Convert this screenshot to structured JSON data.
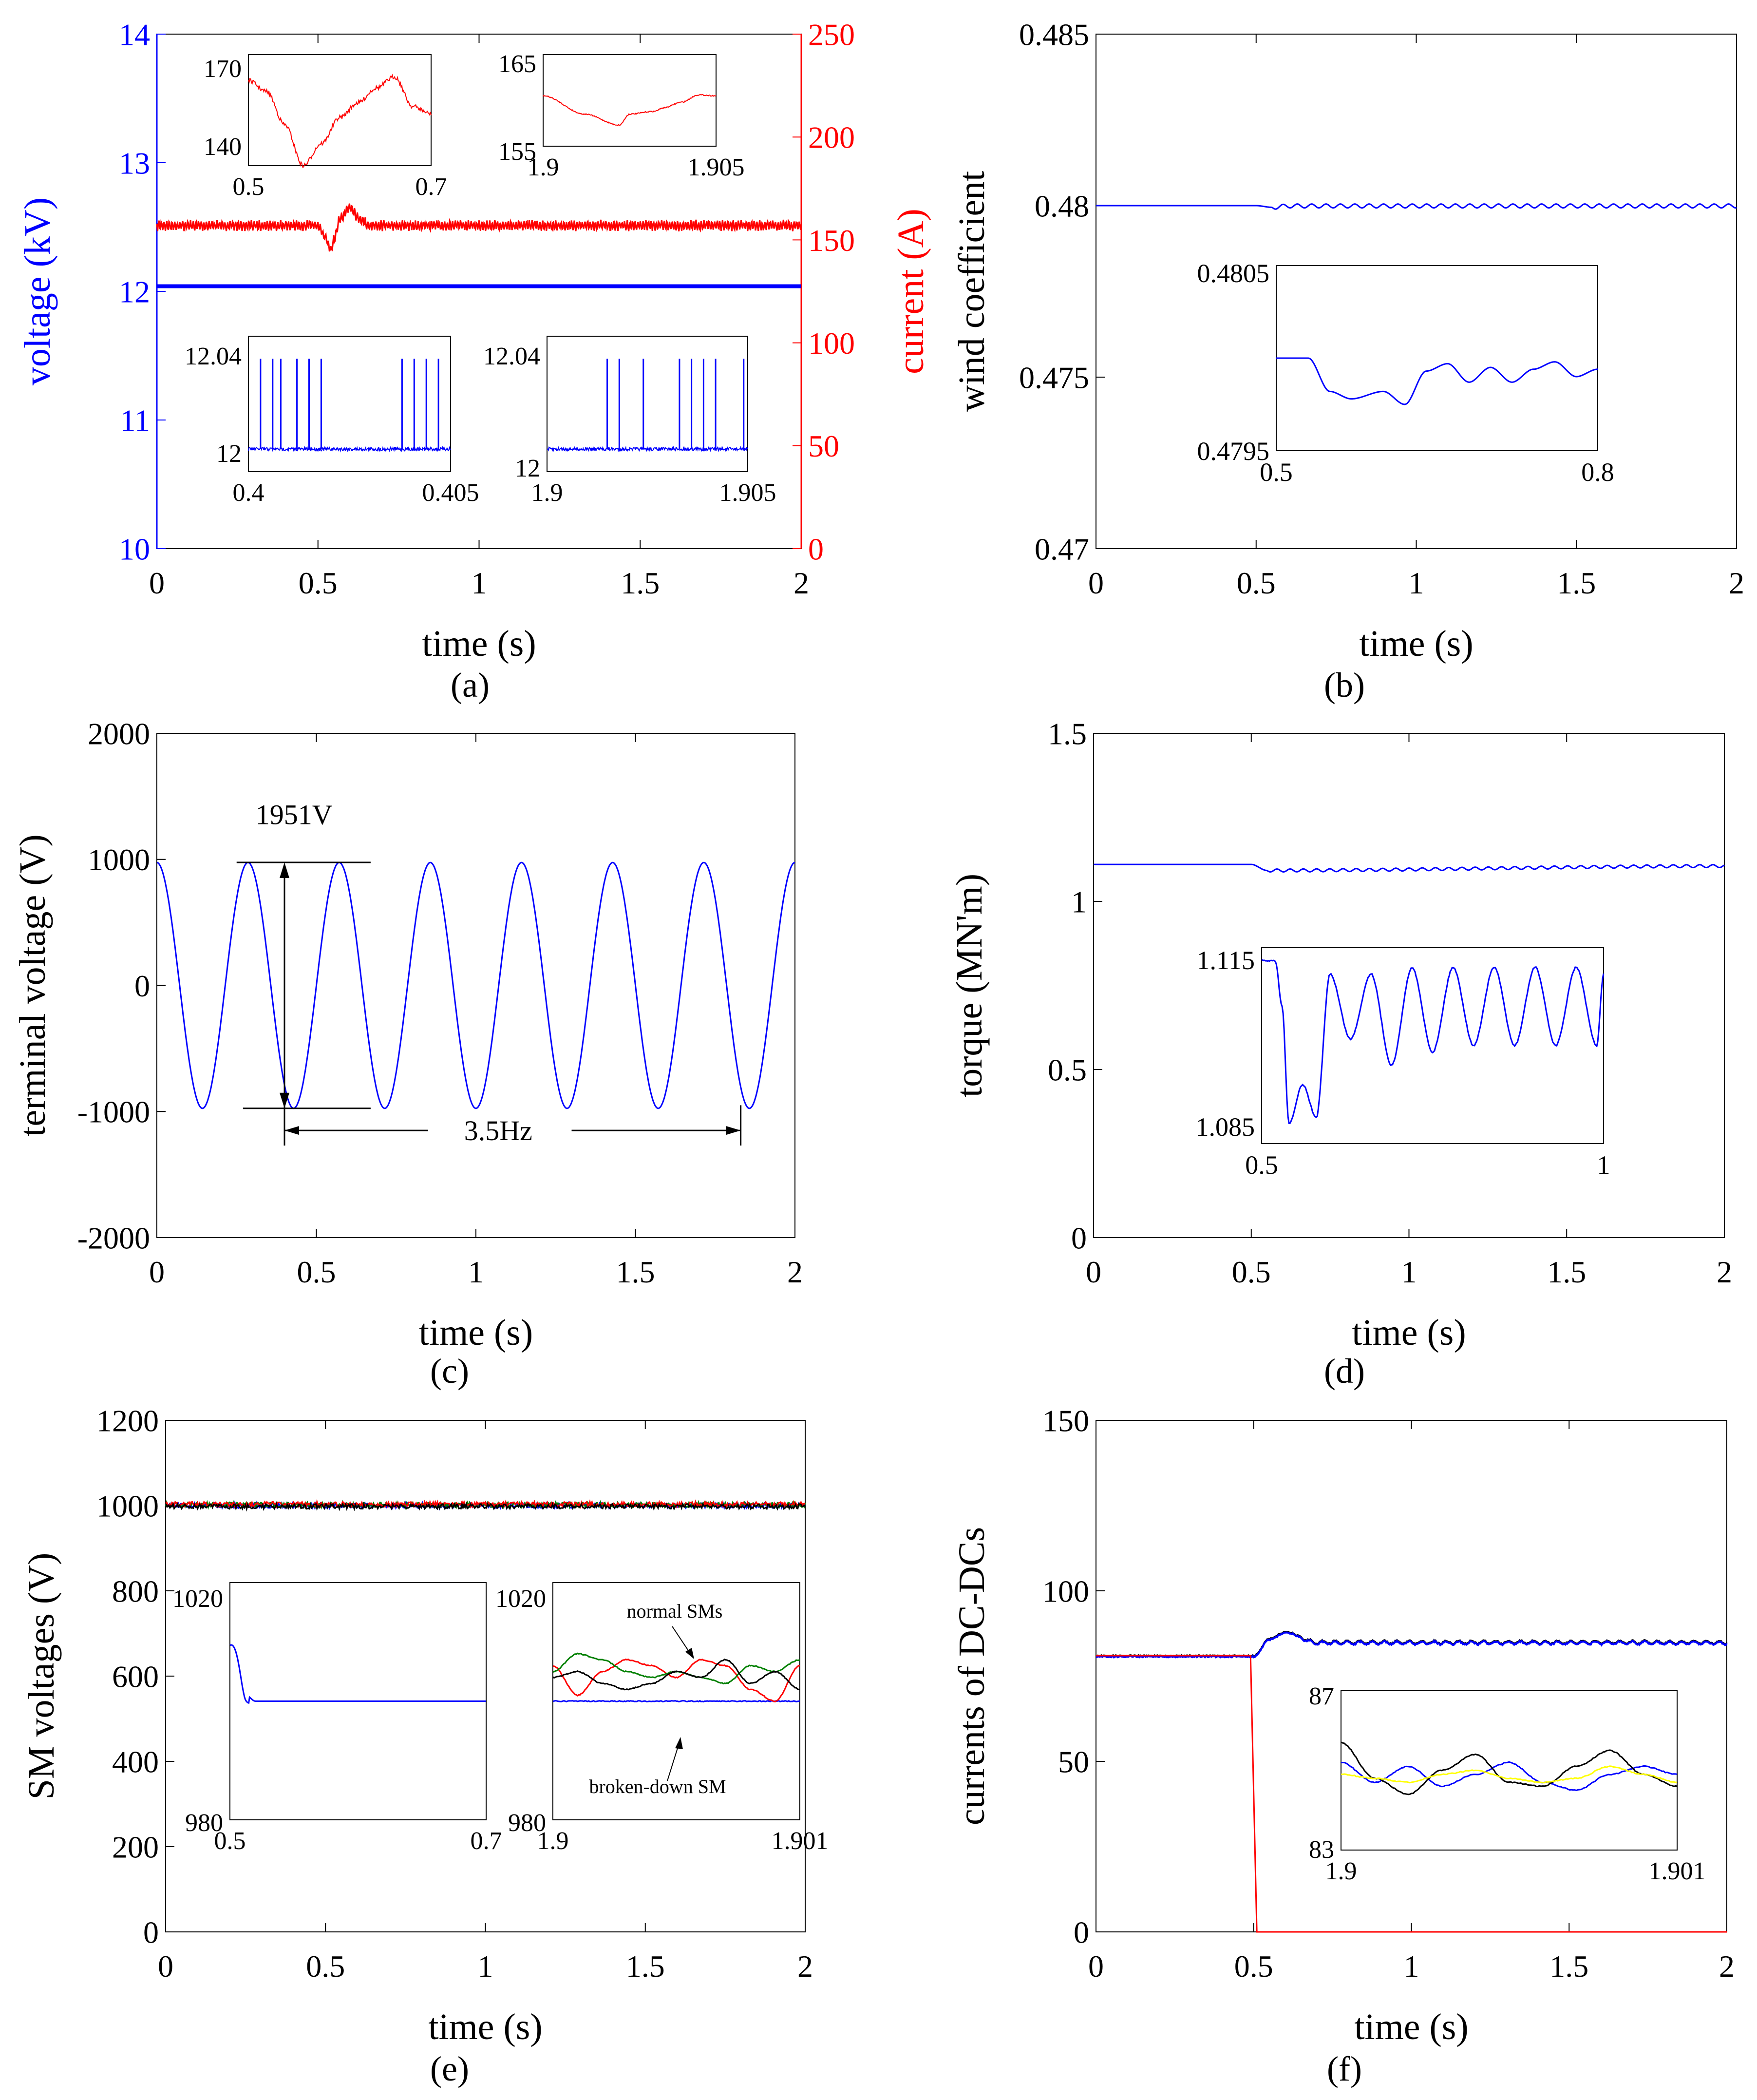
{
  "figure": {
    "panel_labels": [
      "(a)",
      "(b)",
      "(c)",
      "(d)",
      "(e)",
      "(f)"
    ]
  },
  "colors": {
    "blue": "#0000ff",
    "red": "#ff0000",
    "green": "#008000",
    "black": "#000000",
    "yellow": "#ffff00"
  },
  "chart_data": [
    {
      "id": "a",
      "type": "line",
      "label": "(a)",
      "xlabel": "time (s)",
      "ylabel": "voltage (kV)",
      "y2label": "current (A)",
      "xlim": [
        0,
        2
      ],
      "ylim": [
        10,
        14
      ],
      "y2lim": [
        0,
        250
      ],
      "xticks": [
        "0",
        "0.5",
        "1",
        "1.5",
        "2"
      ],
      "yticks": [
        "10",
        "11",
        "12",
        "13",
        "14"
      ],
      "y2ticks": [
        "0",
        "50",
        "100",
        "150",
        "200",
        "250"
      ],
      "series": [
        {
          "color": "#0000ff",
          "axis": "left",
          "x": [
            0,
            2
          ],
          "y": [
            12.04,
            12.04
          ]
        },
        {
          "color": "#ff0000",
          "axis": "right",
          "x": [
            0,
            0.5,
            0.52,
            0.54,
            0.55,
            0.57,
            0.6,
            0.63,
            0.66,
            0.7,
            2
          ],
          "y": [
            157,
            157,
            152,
            145,
            150,
            161,
            166,
            160,
            157,
            157,
            157
          ]
        }
      ],
      "insets": [
        {
          "xlim": [
            0.5,
            0.7
          ],
          "ylim": [
            140,
            170
          ],
          "xticks": [
            "0.5",
            "0.7"
          ],
          "yticks": [
            "140",
            "170"
          ],
          "series": [
            {
              "color": "#ff0000",
              "x": [
                0.5,
                0.52,
                0.54,
                0.56,
                0.58,
                0.6,
                0.62,
                0.64,
                0.66,
                0.68,
                0.7
              ],
              "y": [
                163,
                160,
                151,
                140,
                146,
                153,
                157,
                161,
                164,
                156,
                154
              ]
            }
          ]
        },
        {
          "xlim": [
            1.9,
            1.905
          ],
          "ylim": [
            155,
            165
          ],
          "xticks": [
            "1.9",
            "1.905"
          ],
          "yticks": [
            "155",
            "165"
          ],
          "series": [
            {
              "color": "#ff0000",
              "x": [
                1.9,
                1.9012,
                1.9022,
                1.9025,
                1.9032,
                1.9035,
                1.904,
                1.9045,
                1.905
              ],
              "y": [
                160.5,
                158.5,
                157.3,
                158.5,
                158.8,
                159.2,
                159.8,
                160.6,
                160.5
              ]
            }
          ]
        },
        {
          "xlim": [
            0.4,
            0.405
          ],
          "ylim": [
            11.99,
            12.05
          ],
          "xticks": [
            "0.4",
            "0.405"
          ],
          "yticks": [
            "12",
            "12.04"
          ],
          "series": [
            {
              "color": "#0000ff",
              "base": 12.0,
              "spikes": [
                0.4003,
                0.4006,
                0.4008,
                0.4012,
                0.4015,
                0.4018,
                0.4038,
                0.4041,
                0.4044,
                0.4047
              ],
              "spike_top": 12.04
            }
          ]
        },
        {
          "xlim": [
            1.9,
            1.905
          ],
          "ylim": [
            11.99,
            12.05
          ],
          "xticks": [
            "1.9",
            "1.905"
          ],
          "yticks": [
            "12",
            "12.04"
          ],
          "series": [
            {
              "color": "#0000ff",
              "base": 12.0,
              "spikes": [
                1.9015,
                1.9018,
                1.9024,
                1.9033,
                1.9036,
                1.9039,
                1.9042,
                1.9049
              ],
              "spike_top": 12.04
            }
          ]
        }
      ]
    },
    {
      "id": "b",
      "type": "line",
      "label": "(b)",
      "xlabel": "time (s)",
      "ylabel": "wind coefficient",
      "xlim": [
        0,
        2
      ],
      "ylim": [
        0.47,
        0.485
      ],
      "xticks": [
        "0",
        "0.5",
        "1",
        "1.5",
        "2"
      ],
      "yticks": [
        "0.47",
        "0.475",
        "0.48",
        "0.485"
      ],
      "series": [
        {
          "color": "#0000ff",
          "x": [
            0,
            0.5,
            0.55,
            0.6,
            2
          ],
          "y": [
            0.48,
            0.48,
            0.47995,
            0.47999,
            0.47999
          ]
        }
      ],
      "insets": [
        {
          "xlim": [
            0.5,
            0.8
          ],
          "ylim": [
            0.4795,
            0.4805
          ],
          "xticks": [
            "0.5",
            "0.8"
          ],
          "yticks": [
            "0.4795",
            "0.4805"
          ],
          "series": [
            {
              "color": "#0000ff",
              "x": [
                0.5,
                0.53,
                0.55,
                0.57,
                0.6,
                0.62,
                0.64,
                0.66,
                0.68,
                0.7,
                0.72,
                0.74,
                0.76,
                0.78,
                0.8
              ],
              "y": [
                0.48,
                0.48,
                0.47982,
                0.47978,
                0.47982,
                0.47975,
                0.47993,
                0.47997,
                0.47987,
                0.47995,
                0.47987,
                0.47994,
                0.47998,
                0.4799,
                0.47994
              ]
            }
          ]
        }
      ]
    },
    {
      "id": "c",
      "type": "line",
      "label": "(c)",
      "xlabel": "time (s)",
      "ylabel": "terminal voltage (V)",
      "xlim": [
        0,
        2
      ],
      "ylim": [
        -2000,
        2000
      ],
      "xticks": [
        "0",
        "0.5",
        "1",
        "1.5",
        "2"
      ],
      "yticks": [
        "-2000",
        "-1000",
        "0",
        "1000",
        "2000"
      ],
      "series": [
        {
          "color": "#0000ff",
          "function": "cosine",
          "amplitude": 975,
          "frequency": 3.5
        }
      ],
      "annotations": [
        {
          "text": "1951V",
          "kind": "vertical-span",
          "x": 0.4,
          "y": [
            -975,
            976
          ]
        },
        {
          "text": "3.5Hz",
          "kind": "horizontal-span",
          "x": [
            0.4,
            1.83
          ],
          "y": -1150
        }
      ]
    },
    {
      "id": "d",
      "type": "line",
      "label": "(d)",
      "xlabel": "time (s)",
      "ylabel": "torque (MN'm)",
      "xlim": [
        0,
        2
      ],
      "ylim": [
        0,
        1.5
      ],
      "xticks": [
        "0",
        "0.5",
        "1",
        "1.5",
        "2"
      ],
      "yticks": [
        "0",
        "0.5",
        "1",
        "1.5"
      ],
      "series": [
        {
          "color": "#0000ff",
          "x": [
            0,
            0.5,
            0.55,
            2
          ],
          "y": [
            1.11,
            1.11,
            1.092,
            1.105
          ]
        }
      ],
      "insets": [
        {
          "xlim": [
            0.5,
            1
          ],
          "ylim": [
            1.085,
            1.115
          ],
          "xticks": [
            "0.5",
            "1"
          ],
          "yticks": [
            "1.085",
            "1.115"
          ],
          "series": [
            {
              "color": "#0000ff",
              "x": [
                0.5,
                0.52,
                0.53,
                0.54,
                0.56,
                0.58,
                0.6,
                0.63,
                0.66,
                0.69,
                0.72,
                0.75,
                0.78,
                0.81,
                0.84,
                0.87,
                0.9,
                0.93,
                0.96,
                0.99,
                1.0
              ],
              "y": [
                1.113,
                1.113,
                1.106,
                1.088,
                1.094,
                1.089,
                1.111,
                1.101,
                1.111,
                1.097,
                1.112,
                1.099,
                1.112,
                1.1,
                1.112,
                1.1,
                1.112,
                1.1,
                1.112,
                1.1,
                1.111
              ]
            }
          ]
        }
      ]
    },
    {
      "id": "e",
      "type": "line",
      "label": "(e)",
      "xlabel": "time (s)",
      "ylabel": "SM voltages (V)",
      "xlim": [
        0,
        2
      ],
      "ylim": [
        0,
        1200
      ],
      "xticks": [
        "0",
        "0.5",
        "1",
        "1.5",
        "2"
      ],
      "yticks": [
        "0",
        "200",
        "400",
        "600",
        "800",
        "1000",
        "1200"
      ],
      "series": [
        {
          "color": "#0000ff",
          "x": [
            0,
            2
          ],
          "y": [
            1000,
            1000
          ]
        },
        {
          "color": "#008000",
          "x": [
            0,
            2
          ],
          "y": [
            1002,
            1002
          ]
        },
        {
          "color": "#ff0000",
          "x": [
            0,
            2
          ],
          "y": [
            1003,
            1003
          ]
        },
        {
          "color": "#000000",
          "x": [
            0,
            2
          ],
          "y": [
            998,
            998
          ]
        }
      ],
      "insets": [
        {
          "xlim": [
            0.5,
            0.7
          ],
          "ylim": [
            980,
            1020
          ],
          "xticks": [
            "0.5",
            "0.7"
          ],
          "yticks": [
            "980",
            "1020"
          ],
          "series": [
            {
              "color": "#0000ff",
              "x": [
                0.5,
                0.5125,
                0.52,
                0.7
              ],
              "y": [
                1010.5,
                1001,
                1000,
                1000
              ]
            }
          ]
        },
        {
          "xlim": [
            1.9,
            1.901
          ],
          "ylim": [
            980,
            1020
          ],
          "xticks": [
            "1.9",
            "1.901"
          ],
          "yticks": [
            "980",
            "1020"
          ],
          "annotations": [
            "normal SMs",
            "broken-down SM"
          ],
          "series": [
            {
              "color": "#0000ff",
              "x": [
                1.9,
                1.901
              ],
              "y": [
                1000,
                1000
              ]
            },
            {
              "color": "#ff0000",
              "x": [
                1.9,
                1.9001,
                1.9002,
                1.9003,
                1.9004,
                1.9005,
                1.9006,
                1.9007,
                1.9008,
                1.9009,
                1.901
              ],
              "y": [
                1006,
                1001,
                1005,
                1007,
                1006,
                1004,
                1007,
                1006,
                1002,
                1000,
                1006
              ]
            },
            {
              "color": "#008000",
              "x": [
                1.9,
                1.9001,
                1.9002,
                1.9003,
                1.9004,
                1.9005,
                1.9006,
                1.9007,
                1.9008,
                1.9009,
                1.901
              ],
              "y": [
                1005,
                1008,
                1007,
                1005,
                1004,
                1005,
                1004,
                1003,
                1006,
                1005,
                1007
              ]
            },
            {
              "color": "#000000",
              "x": [
                1.9,
                1.9001,
                1.9002,
                1.9003,
                1.9004,
                1.9005,
                1.9006,
                1.9007,
                1.9008,
                1.9009,
                1.901
              ],
              "y": [
                1004,
                1005,
                1003,
                1002,
                1003,
                1005,
                1004,
                1007,
                1003,
                1005,
                1002
              ]
            }
          ]
        }
      ]
    },
    {
      "id": "f",
      "type": "line",
      "label": "(f)",
      "xlabel": "time (s)",
      "ylabel": "currents of DC-DCs",
      "xlim": [
        0,
        2
      ],
      "ylim": [
        0,
        150
      ],
      "xticks": [
        "0",
        "0.5",
        "1",
        "1.5",
        "2"
      ],
      "yticks": [
        "0",
        "50",
        "100",
        "150"
      ],
      "series": [
        {
          "color": "#0000ff",
          "x": [
            0,
            0.5,
            0.55,
            0.6,
            0.7,
            2
          ],
          "y": [
            81,
            81,
            86,
            88,
            85,
            85
          ]
        },
        {
          "color": "#ff0000",
          "x": [
            0,
            0.49,
            0.51,
            2
          ],
          "y": [
            81,
            81,
            0,
            0
          ]
        }
      ],
      "insets": [
        {
          "xlim": [
            1.9,
            1.901
          ],
          "ylim": [
            83,
            87
          ],
          "xticks": [
            "1.9",
            "1.901"
          ],
          "yticks": [
            "83",
            "87"
          ],
          "series": [
            {
              "color": "#0000ff",
              "x": [
                1.9,
                1.9001,
                1.9002,
                1.9003,
                1.9004,
                1.9005,
                1.9006,
                1.9007,
                1.9008,
                1.9009,
                1.901
              ],
              "y": [
                85.2,
                84.7,
                85.1,
                84.6,
                84.9,
                85.2,
                84.7,
                84.5,
                84.9,
                85.1,
                84.9
              ]
            },
            {
              "color": "#000000",
              "x": [
                1.9,
                1.9001,
                1.9002,
                1.9003,
                1.9004,
                1.9005,
                1.9006,
                1.9007,
                1.9008,
                1.9009,
                1.901
              ],
              "y": [
                85.7,
                84.8,
                84.4,
                85.0,
                85.4,
                84.7,
                84.6,
                85.1,
                85.5,
                84.9,
                84.6
              ]
            },
            {
              "color": "#ffff00",
              "x": [
                1.9,
                1.9001,
                1.9002,
                1.9003,
                1.9004,
                1.9005,
                1.9006,
                1.9007,
                1.9008,
                1.9009,
                1.901
              ],
              "y": [
                84.9,
                84.8,
                84.7,
                84.9,
                85.0,
                84.8,
                84.7,
                84.8,
                85.1,
                84.9,
                84.7
              ]
            }
          ]
        }
      ]
    }
  ]
}
